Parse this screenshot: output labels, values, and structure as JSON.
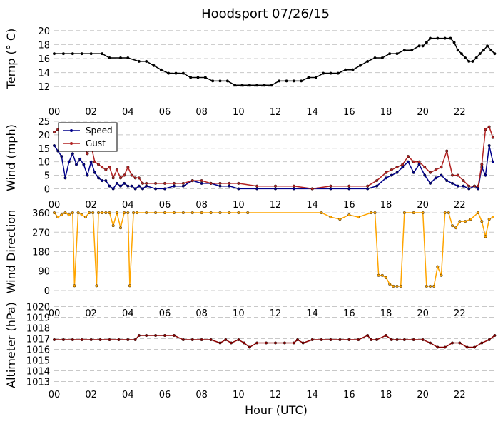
{
  "chart_data": {
    "type": "line",
    "title": "Hoodsport 07/26/15",
    "xlabel": "Hour (UTC)",
    "x_ticks": [
      "00",
      "02",
      "04",
      "06",
      "08",
      "10",
      "12",
      "14",
      "16",
      "18",
      "20",
      "22"
    ],
    "xlim": [
      0,
      24
    ],
    "panels": [
      {
        "id": "temp",
        "ylabel": "Temp ($^\\circ$C)",
        "ylabel_display": "Temp (° C)",
        "ylim": [
          11,
          21
        ],
        "yticks": [
          12,
          14,
          16,
          18,
          20
        ],
        "grid": "horizontal dashed",
        "series": [
          {
            "color": "#000000",
            "x": [
              0,
              0.5,
              1,
              1.5,
              2,
              2.6,
              3,
              3.6,
              4,
              4.6,
              5,
              5.4,
              5.8,
              6.2,
              6.6,
              7,
              7.4,
              7.8,
              8.2,
              8.6,
              9,
              9.4,
              9.8,
              10.2,
              10.6,
              11,
              11.4,
              11.8,
              12.2,
              12.6,
              13,
              13.4,
              13.8,
              14.2,
              14.6,
              15,
              15.4,
              15.8,
              16.2,
              16.6,
              17,
              17.4,
              17.8,
              18.2,
              18.6,
              19,
              19.4,
              19.8,
              20,
              20.2,
              20.4,
              20.8,
              21.2,
              21.5,
              21.7,
              21.9,
              22.1,
              22.3,
              22.5,
              22.7,
              22.9,
              23.1,
              23.3,
              23.5,
              23.7,
              23.9
            ],
            "y": [
              16.7,
              16.7,
              16.7,
              16.7,
              16.7,
              16.7,
              16.1,
              16.1,
              16.1,
              15.6,
              15.6,
              15.0,
              14.4,
              13.9,
              13.9,
              13.9,
              13.3,
              13.3,
              13.3,
              12.8,
              12.8,
              12.8,
              12.2,
              12.2,
              12.2,
              12.2,
              12.2,
              12.2,
              12.8,
              12.8,
              12.8,
              12.8,
              13.3,
              13.3,
              13.9,
              13.9,
              13.9,
              14.4,
              14.4,
              15.0,
              15.6,
              16.1,
              16.1,
              16.7,
              16.7,
              17.2,
              17.2,
              17.8,
              17.8,
              18.3,
              18.9,
              18.9,
              18.9,
              18.9,
              18.3,
              17.2,
              16.7,
              16.1,
              15.6,
              15.6,
              16.1,
              16.7,
              17.2,
              17.8,
              17.2,
              16.7
            ]
          }
        ]
      },
      {
        "id": "wind",
        "ylabel": "Wind (mph)",
        "ylim": [
          -2,
          25
        ],
        "yticks": [
          0,
          5,
          10,
          15,
          20,
          25
        ],
        "grid": "horizontal dashed",
        "legend": {
          "placement": "top-left"
        },
        "series": [
          {
            "name": "Speed",
            "color": "#00008b",
            "x": [
              0,
              0.2,
              0.4,
              0.6,
              0.8,
              1,
              1.2,
              1.4,
              1.6,
              1.8,
              2,
              2.2,
              2.4,
              2.6,
              2.8,
              3,
              3.2,
              3.4,
              3.6,
              3.8,
              4,
              4.2,
              4.4,
              4.6,
              4.8,
              5,
              5.5,
              6,
              6.5,
              7,
              7.5,
              8,
              8.5,
              9,
              9.5,
              10,
              11,
              12,
              13,
              14,
              15,
              16,
              17,
              17.5,
              18,
              18.3,
              18.6,
              18.9,
              19.2,
              19.5,
              19.8,
              20.1,
              20.4,
              20.7,
              21,
              21.3,
              21.6,
              21.9,
              22.2,
              22.5,
              22.8,
              23,
              23.2,
              23.4,
              23.6,
              23.8
            ],
            "y": [
              16,
              14,
              12,
              4,
              10,
              13,
              9,
              11,
              9,
              5,
              10,
              6,
              4,
              3,
              3,
              1,
              0,
              2,
              1,
              2,
              1,
              1,
              0,
              1,
              0,
              1,
              0,
              0,
              1,
              1,
              3,
              2,
              2,
              1,
              1,
              0,
              0,
              0,
              0,
              0,
              0,
              0,
              0,
              1,
              4,
              5,
              6,
              8,
              10,
              6,
              9,
              5,
              2,
              4,
              5,
              3,
              2,
              1,
              1,
              0,
              1,
              0,
              8,
              5,
              16,
              10
            ]
          },
          {
            "name": "Gust",
            "color": "#b22222",
            "x": [
              0,
              0.2,
              0.4,
              0.6,
              0.8,
              1,
              1.2,
              1.4,
              1.6,
              1.8,
              2,
              2.2,
              2.4,
              2.6,
              2.8,
              3,
              3.2,
              3.4,
              3.6,
              3.8,
              4,
              4.2,
              4.4,
              4.6,
              4.8,
              5,
              5.5,
              6,
              6.5,
              7,
              7.5,
              8,
              8.5,
              9,
              9.5,
              10,
              11,
              12,
              13,
              14,
              15,
              16,
              17,
              17.5,
              18,
              18.3,
              18.6,
              18.9,
              19.2,
              19.5,
              19.8,
              20.1,
              20.4,
              20.7,
              21,
              21.3,
              21.6,
              21.9,
              22.2,
              22.5,
              22.8,
              23,
              23.2,
              23.4,
              23.6,
              23.8
            ],
            "y": [
              21,
              22,
              19,
              17,
              20,
              19,
              18,
              18,
              16,
              13,
              16,
              10,
              9,
              8,
              7,
              8,
              4,
              7,
              4,
              5,
              8,
              5,
              4,
              4,
              2,
              2,
              2,
              2,
              2,
              2,
              3,
              3,
              2,
              2,
              2,
              2,
              1,
              1,
              1,
              0,
              1,
              1,
              1,
              3,
              6,
              7,
              8,
              9,
              12,
              10,
              10,
              8,
              6,
              7,
              8,
              14,
              5,
              5,
              3,
              1,
              1,
              1,
              9,
              22,
              23,
              19
            ]
          }
        ]
      },
      {
        "id": "direction",
        "ylabel": "Wind Direction",
        "ylim": [
          -10,
          370
        ],
        "yticks": [
          0,
          90,
          180,
          270,
          360
        ],
        "grid": "horizontal dashed",
        "series": [
          {
            "color": "#ffa500",
            "x": [
              0,
              0.2,
              0.4,
              0.6,
              0.8,
              1,
              1.1,
              1.3,
              1.5,
              1.7,
              1.9,
              2.1,
              2.3,
              2.4,
              2.6,
              2.8,
              3,
              3.2,
              3.4,
              3.6,
              3.8,
              4,
              4.1,
              4.3,
              4.5,
              5,
              5.5,
              6,
              6.5,
              7,
              7.5,
              8,
              8.5,
              9,
              9.5,
              10,
              10.5,
              14.5,
              15,
              15.5,
              16,
              16.5,
              17.2,
              17.4,
              17.6,
              17.8,
              18,
              18.2,
              18.4,
              18.6,
              18.8,
              19,
              19.5,
              20,
              20.2,
              20.4,
              20.6,
              20.8,
              21,
              21.2,
              21.4,
              21.6,
              21.8,
              22,
              22.3,
              22.6,
              23,
              23.2,
              23.4,
              23.6,
              23.8
            ],
            "y": [
              360,
              340,
              350,
              360,
              350,
              360,
              22,
              360,
              350,
              340,
              360,
              360,
              22,
              360,
              360,
              360,
              360,
              300,
              360,
              290,
              360,
              360,
              22,
              360,
              360,
              360,
              360,
              360,
              360,
              360,
              360,
              360,
              360,
              360,
              360,
              360,
              360,
              360,
              340,
              330,
              350,
              340,
              360,
              360,
              70,
              70,
              60,
              30,
              20,
              20,
              20,
              360,
              360,
              360,
              20,
              20,
              20,
              110,
              70,
              360,
              360,
              300,
              290,
              320,
              320,
              330,
              360,
              320,
              250,
              330,
              340
            ]
          }
        ]
      },
      {
        "id": "altimeter",
        "ylabel": "Altimeter (hPa)",
        "ylim": [
          1012.5,
          1020.3
        ],
        "yticks": [
          1013,
          1014,
          1015,
          1016,
          1017,
          1018,
          1019,
          1020
        ],
        "grid": "horizontal dashed",
        "series": [
          {
            "color": "#8b0000",
            "x": [
              0,
              0.5,
              1,
              1.5,
              2,
              2.5,
              3,
              3.5,
              4,
              4.4,
              4.6,
              5,
              5.5,
              6,
              6.5,
              7,
              7.5,
              8,
              8.5,
              9,
              9.3,
              9.6,
              10,
              10.3,
              10.6,
              11,
              11.5,
              12,
              12.5,
              13,
              13.2,
              13.5,
              14,
              14.5,
              15,
              15.5,
              16,
              16.5,
              17,
              17.2,
              17.5,
              18,
              18.3,
              18.6,
              19,
              19.5,
              20,
              20.4,
              20.8,
              21.2,
              21.6,
              22,
              22.4,
              22.8,
              23.2,
              23.6,
              23.9
            ],
            "y": [
              1016.9,
              1016.9,
              1016.9,
              1016.9,
              1016.9,
              1016.9,
              1016.9,
              1016.9,
              1016.9,
              1016.9,
              1017.3,
              1017.3,
              1017.3,
              1017.3,
              1017.3,
              1016.9,
              1016.9,
              1016.9,
              1016.9,
              1016.6,
              1016.9,
              1016.6,
              1016.9,
              1016.6,
              1016.2,
              1016.6,
              1016.6,
              1016.6,
              1016.6,
              1016.6,
              1016.9,
              1016.6,
              1016.9,
              1016.9,
              1016.9,
              1016.9,
              1016.9,
              1016.9,
              1017.3,
              1016.9,
              1016.9,
              1017.3,
              1016.9,
              1016.9,
              1016.9,
              1016.9,
              1016.9,
              1016.6,
              1016.2,
              1016.2,
              1016.6,
              1016.6,
              1016.2,
              1016.2,
              1016.6,
              1016.9,
              1017.3
            ]
          }
        ]
      }
    ]
  }
}
